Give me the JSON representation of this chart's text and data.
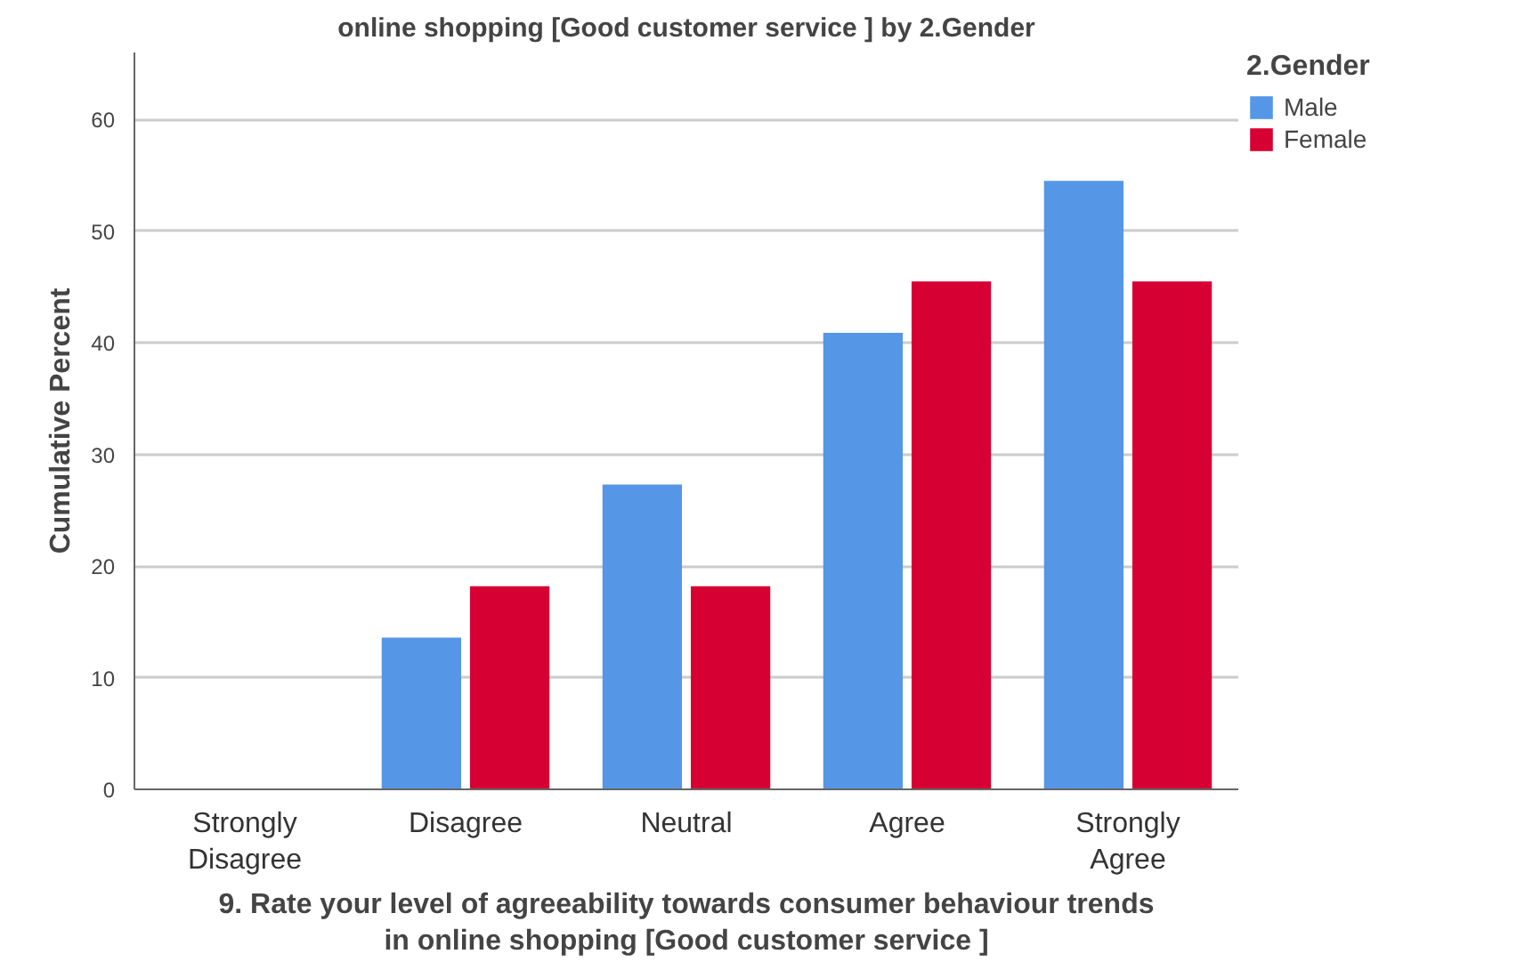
{
  "chart_data": {
    "type": "bar",
    "title": "online shopping [Good customer service ] by 2.Gender",
    "xlabel": "9. Rate your level of agreeability towards consumer behaviour trends\nin online shopping [Good customer service ]",
    "ylabel": "Cumulative Percent",
    "legend_title": "2.Gender",
    "categories": [
      "Strongly\nDisagree",
      "Disagree",
      "Neutral",
      "Agree",
      "Strongly\nAgree"
    ],
    "series": [
      {
        "name": "Male",
        "color": "#5596e6",
        "values": [
          0,
          13.6,
          27.3,
          40.9,
          54.5
        ]
      },
      {
        "name": "Female",
        "color": "#d70032",
        "values": [
          0,
          18.2,
          18.2,
          45.5,
          45.5
        ]
      }
    ],
    "ylim": [
      0,
      66
    ],
    "yticks": [
      0,
      10,
      20,
      30,
      40,
      50,
      60
    ],
    "grid": "y",
    "legend": "top right"
  }
}
